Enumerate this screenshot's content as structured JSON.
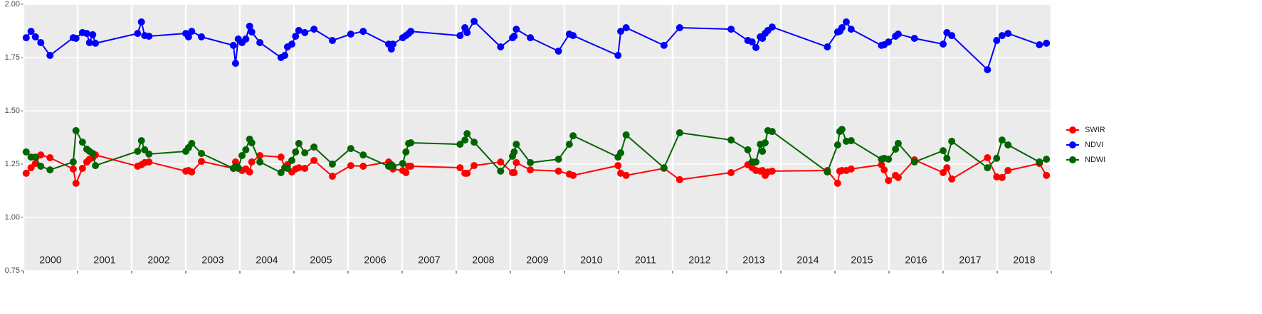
{
  "chart_data": {
    "type": "line",
    "x": [
      2000.05,
      2000.14,
      2000.22,
      2000.32,
      2000.49,
      2000.92,
      2000.97,
      2001.09,
      2001.17,
      2001.22,
      2001.28,
      2001.33,
      2002.11,
      2002.18,
      2002.24,
      2002.32,
      2003.0,
      2003.05,
      2003.11,
      2003.29,
      2003.88,
      2003.92,
      2003.97,
      2004.04,
      2004.11,
      2004.18,
      2004.22,
      2004.37,
      2004.76,
      2004.83,
      2004.88,
      2004.96,
      2005.03,
      2005.09,
      2005.2,
      2005.37,
      2005.71,
      2006.05,
      2006.28,
      2006.75,
      2006.8,
      2006.83,
      2007.01,
      2007.07,
      2007.12,
      2007.16,
      2008.07,
      2008.16,
      2008.2,
      2008.33,
      2008.82,
      2009.04,
      2009.07,
      2009.11,
      2009.37,
      2009.89,
      2010.09,
      2010.16,
      2010.99,
      2011.04,
      2011.14,
      2011.84,
      2012.13,
      2013.08,
      2013.39,
      2013.47,
      2013.54,
      2013.62,
      2013.66,
      2013.71,
      2013.76,
      2013.84,
      2014.86,
      2015.05,
      2015.09,
      2015.13,
      2015.21,
      2015.3,
      2015.86,
      2015.91,
      2015.99,
      2016.12,
      2016.17,
      2016.47,
      2017.0,
      2017.07,
      2017.16,
      2017.82,
      2017.99,
      2018.09,
      2018.2,
      2018.78,
      2018.91
    ],
    "series": [
      {
        "name": "SWIR",
        "color": "#ff0000",
        "values": [
          1.207,
          1.233,
          1.253,
          1.293,
          1.28,
          1.227,
          1.16,
          1.23,
          1.26,
          1.273,
          1.28,
          1.293,
          1.24,
          1.247,
          1.257,
          1.26,
          1.217,
          1.22,
          1.213,
          1.263,
          1.23,
          1.26,
          1.23,
          1.22,
          1.227,
          1.213,
          1.26,
          1.29,
          1.283,
          1.233,
          1.247,
          1.213,
          1.227,
          1.233,
          1.23,
          1.267,
          1.193,
          1.243,
          1.24,
          1.26,
          1.24,
          1.227,
          1.22,
          1.21,
          1.24,
          1.24,
          1.233,
          1.207,
          1.207,
          1.243,
          1.26,
          1.21,
          1.21,
          1.257,
          1.223,
          1.217,
          1.203,
          1.197,
          1.243,
          1.207,
          1.197,
          1.23,
          1.177,
          1.21,
          1.247,
          1.233,
          1.22,
          1.217,
          1.22,
          1.197,
          1.213,
          1.217,
          1.22,
          1.16,
          1.217,
          1.22,
          1.22,
          1.227,
          1.247,
          1.223,
          1.173,
          1.197,
          1.187,
          1.27,
          1.21,
          1.233,
          1.18,
          1.28,
          1.19,
          1.187,
          1.22,
          1.253,
          1.197
        ]
      },
      {
        "name": "NDVI",
        "color": "#0000ff",
        "values": [
          1.843,
          1.873,
          1.847,
          1.82,
          1.76,
          1.843,
          1.84,
          1.867,
          1.863,
          1.82,
          1.857,
          1.817,
          1.863,
          1.917,
          1.853,
          1.85,
          1.863,
          1.847,
          1.873,
          1.847,
          1.807,
          1.723,
          1.837,
          1.82,
          1.837,
          1.897,
          1.87,
          1.82,
          1.75,
          1.76,
          1.8,
          1.813,
          1.85,
          1.877,
          1.867,
          1.883,
          1.83,
          1.86,
          1.873,
          1.813,
          1.79,
          1.813,
          1.843,
          1.853,
          1.863,
          1.873,
          1.853,
          1.89,
          1.867,
          1.92,
          1.8,
          1.843,
          1.85,
          1.883,
          1.843,
          1.78,
          1.86,
          1.853,
          1.76,
          1.873,
          1.89,
          1.807,
          1.89,
          1.883,
          1.83,
          1.823,
          1.797,
          1.847,
          1.84,
          1.863,
          1.877,
          1.893,
          1.8,
          1.87,
          1.873,
          1.89,
          1.917,
          1.883,
          1.807,
          1.81,
          1.823,
          1.85,
          1.86,
          1.84,
          1.813,
          1.867,
          1.853,
          1.693,
          1.83,
          1.853,
          1.863,
          1.81,
          1.817
        ]
      },
      {
        "name": "NDWI",
        "color": "#006400",
        "values": [
          1.307,
          1.283,
          1.283,
          1.24,
          1.223,
          1.26,
          1.407,
          1.353,
          1.32,
          1.31,
          1.3,
          1.243,
          1.31,
          1.36,
          1.317,
          1.297,
          1.31,
          1.327,
          1.347,
          1.3,
          1.23,
          1.24,
          1.233,
          1.29,
          1.317,
          1.367,
          1.35,
          1.26,
          1.21,
          1.233,
          1.23,
          1.267,
          1.307,
          1.347,
          1.303,
          1.33,
          1.25,
          1.323,
          1.293,
          1.24,
          1.247,
          1.24,
          1.253,
          1.307,
          1.347,
          1.35,
          1.343,
          1.363,
          1.393,
          1.353,
          1.217,
          1.287,
          1.307,
          1.343,
          1.257,
          1.273,
          1.343,
          1.383,
          1.283,
          1.303,
          1.387,
          1.233,
          1.397,
          1.363,
          1.317,
          1.26,
          1.26,
          1.343,
          1.31,
          1.35,
          1.407,
          1.403,
          1.213,
          1.34,
          1.403,
          1.413,
          1.357,
          1.36,
          1.273,
          1.277,
          1.273,
          1.32,
          1.347,
          1.26,
          1.313,
          1.277,
          1.357,
          1.233,
          1.277,
          1.363,
          1.34,
          1.26,
          1.273
        ]
      }
    ],
    "xlim": [
      2000,
      2019
    ],
    "xticks": [
      2000,
      2001,
      2002,
      2003,
      2004,
      2005,
      2006,
      2007,
      2008,
      2009,
      2010,
      2011,
      2012,
      2013,
      2014,
      2015,
      2016,
      2017,
      2018,
      2019
    ],
    "year_labels": [
      "2000",
      "2001",
      "2002",
      "2003",
      "2004",
      "2005",
      "2006",
      "2007",
      "2008",
      "2009",
      "2010",
      "2011",
      "2012",
      "2013",
      "2014",
      "2015",
      "2016",
      "2017",
      "2018"
    ],
    "ylim": [
      0.75,
      2.0
    ],
    "yticks": [
      {
        "value": 0.75,
        "label": "0.75"
      },
      {
        "value": 1.0,
        "label": "1.00"
      },
      {
        "value": 1.25,
        "label": "1.25"
      },
      {
        "value": 1.5,
        "label": "1.50"
      },
      {
        "value": 1.75,
        "label": "1.75"
      },
      {
        "value": 2.0,
        "label": "2.00"
      }
    ],
    "grid": true,
    "legend": "right"
  }
}
